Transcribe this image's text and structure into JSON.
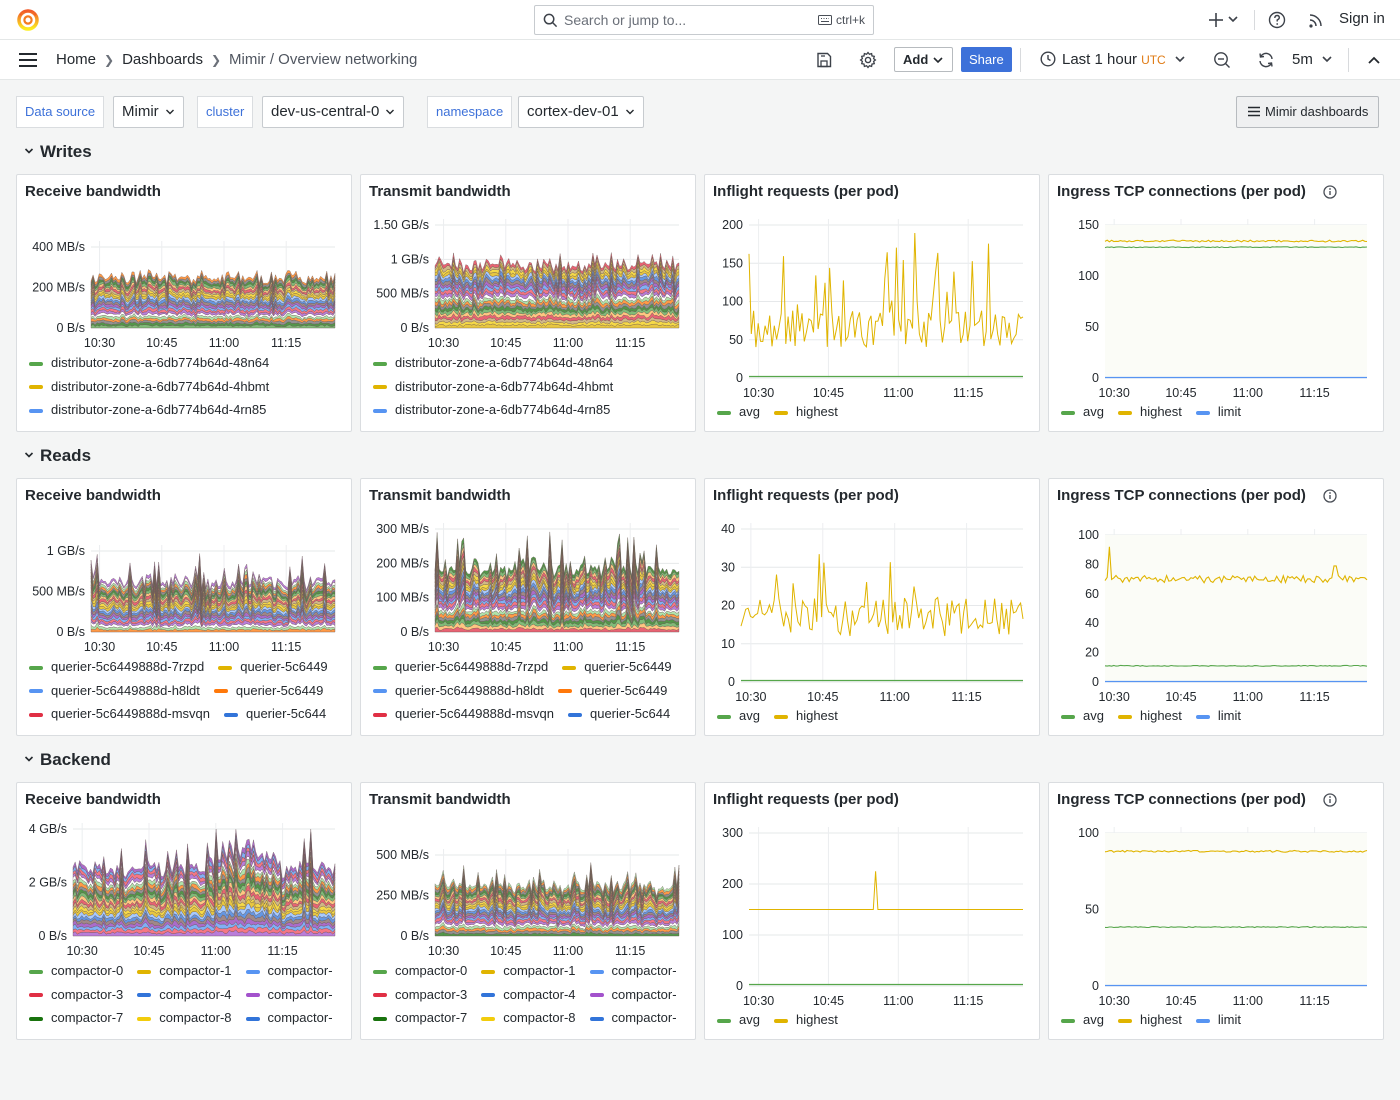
{
  "topbar": {
    "search_placeholder": "Search or jump to...",
    "search_shortcut": "ctrl+k",
    "signin": "Sign in"
  },
  "nav": {
    "breadcrumbs": [
      "Home",
      "Dashboards",
      "Mimir / Overview networking"
    ],
    "add_label": "Add",
    "share_label": "Share",
    "time_range": "Last 1 hour",
    "timezone": "UTC",
    "refresh_interval": "5m"
  },
  "variables": {
    "datasource_label": "Data source",
    "datasource_value": "Mimir",
    "cluster_label": "cluster",
    "cluster_value": "dev-us-central-0",
    "namespace_label": "namespace",
    "namespace_value": "cortex-dev-01",
    "dashboards_button": "Mimir dashboards"
  },
  "colors": {
    "green": "#56a64b",
    "yellow": "#e0b400",
    "blue": "#5794f2",
    "red": "#e02f44",
    "orange": "#ff780a",
    "purple": "#a352cc",
    "darkgreen": "#19730e",
    "lightyellow": "#f2cc0c",
    "darkblue": "#3274d9"
  },
  "time_ticks": [
    "10:30",
    "10:45",
    "11:00",
    "11:15"
  ],
  "rows": [
    {
      "title": "Writes",
      "panels": [
        {
          "title": "Receive bandwidth",
          "type": "stacked",
          "yticks": [
            "400 MB/s",
            "200 MB/s",
            "0 B/s"
          ],
          "legend": [
            [
              "distributor-zone-a-6db774b64d-48n64"
            ],
            [
              "distributor-zone-a-6db774b64d-4hbmt"
            ],
            [
              "distributor-zone-a-6db774b64d-4rn85"
            ]
          ]
        },
        {
          "title": "Transmit bandwidth",
          "type": "stacked",
          "yticks": [
            "1.50 GB/s",
            "1 GB/s",
            "500 MB/s",
            "0 B/s"
          ],
          "legend": [
            [
              "distributor-zone-a-6db774b64d-48n64"
            ],
            [
              "distributor-zone-a-6db774b64d-4hbmt"
            ],
            [
              "distributor-zone-a-6db774b64d-4rn85"
            ]
          ]
        },
        {
          "title": "Inflight requests (per pod)",
          "type": "line",
          "yticks": [
            "200",
            "150",
            "100",
            "50",
            "0"
          ],
          "legend": [
            [
              "avg",
              "highest"
            ]
          ]
        },
        {
          "title": "Ingress TCP connections (per pod)",
          "type": "tcp",
          "info": true,
          "yticks": [
            "150",
            "100",
            "50",
            "0"
          ],
          "legend": [
            [
              "avg",
              "highest",
              "limit"
            ]
          ]
        }
      ]
    },
    {
      "title": "Reads",
      "panels": [
        {
          "title": "Receive bandwidth",
          "type": "stacked",
          "yticks": [
            "1 GB/s",
            "500 MB/s",
            "0 B/s"
          ],
          "legend": [
            [
              "querier-5c6449888d-7rzpd",
              "querier-5c6449"
            ],
            [
              "querier-5c6449888d-h8ldt",
              "querier-5c6449"
            ],
            [
              "querier-5c6449888d-msvqn",
              "querier-5c644"
            ]
          ]
        },
        {
          "title": "Transmit bandwidth",
          "type": "stacked",
          "yticks": [
            "300 MB/s",
            "200 MB/s",
            "100 MB/s",
            "0 B/s"
          ],
          "legend": [
            [
              "querier-5c6449888d-7rzpd",
              "querier-5c6449"
            ],
            [
              "querier-5c6449888d-h8ldt",
              "querier-5c6449"
            ],
            [
              "querier-5c6449888d-msvqn",
              "querier-5c644"
            ]
          ]
        },
        {
          "title": "Inflight requests (per pod)",
          "type": "line",
          "yticks": [
            "40",
            "30",
            "20",
            "10",
            "0"
          ],
          "legend": [
            [
              "avg",
              "highest"
            ]
          ]
        },
        {
          "title": "Ingress TCP connections (per pod)",
          "type": "tcp",
          "info": true,
          "yticks": [
            "100",
            "80",
            "60",
            "40",
            "20",
            "0"
          ],
          "legend": [
            [
              "avg",
              "highest",
              "limit"
            ]
          ]
        }
      ]
    },
    {
      "title": "Backend",
      "panels": [
        {
          "title": "Receive bandwidth",
          "type": "stacked",
          "yticks": [
            "4 GB/s",
            "2 GB/s",
            "0 B/s"
          ],
          "legend": [
            [
              "compactor-0",
              "compactor-1",
              "compactor-"
            ],
            [
              "compactor-3",
              "compactor-4",
              "compactor-"
            ],
            [
              "compactor-7",
              "compactor-8",
              "compactor-"
            ]
          ]
        },
        {
          "title": "Transmit bandwidth",
          "type": "stacked",
          "yticks": [
            "500 MB/s",
            "250 MB/s",
            "0 B/s"
          ],
          "legend": [
            [
              "compactor-0",
              "compactor-1",
              "compactor-"
            ],
            [
              "compactor-3",
              "compactor-4",
              "compactor-"
            ],
            [
              "compactor-7",
              "compactor-8",
              "compactor-"
            ]
          ]
        },
        {
          "title": "Inflight requests (per pod)",
          "type": "line",
          "yticks": [
            "300",
            "200",
            "100",
            "0"
          ],
          "legend": [
            [
              "avg",
              "highest"
            ]
          ]
        },
        {
          "title": "Ingress TCP connections (per pod)",
          "type": "tcp",
          "info": true,
          "yticks": [
            "100",
            "50",
            "0"
          ],
          "legend": [
            [
              "avg",
              "highest",
              "limit"
            ]
          ]
        }
      ]
    }
  ]
}
